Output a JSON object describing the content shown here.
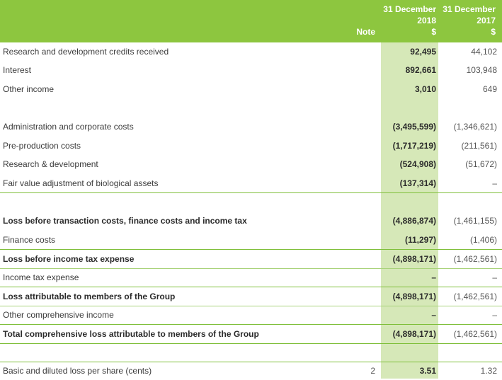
{
  "header": {
    "note_label": "Note",
    "col2018": {
      "line1": "31 December",
      "line2": "2018",
      "unit": "$"
    },
    "col2017": {
      "line1": "31 December",
      "line2": "2017",
      "unit": "$"
    }
  },
  "rows": [
    {
      "label": "Research and development credits received",
      "note": "",
      "v2018": "92,495",
      "v2017": "44,102"
    },
    {
      "label": "Interest",
      "note": "",
      "v2018": "892,661",
      "v2017": "103,948"
    },
    {
      "label": "Other income",
      "note": "",
      "v2018": "3,010",
      "v2017": "649"
    },
    {
      "label": "Administration and corporate costs",
      "note": "",
      "v2018": "(3,495,599)",
      "v2017": "(1,346,621)"
    },
    {
      "label": "Pre-production costs",
      "note": "",
      "v2018": "(1,717,219)",
      "v2017": "(211,561)"
    },
    {
      "label": "Research & development",
      "note": "",
      "v2018": "(524,908)",
      "v2017": "(51,672)"
    },
    {
      "label": "Fair value adjustment of biological assets",
      "note": "",
      "v2018": "(137,314)",
      "v2017": "–"
    },
    {
      "label": "Loss before transaction costs, finance costs and income tax",
      "note": "",
      "v2018": "(4,886,874)",
      "v2017": "(1,461,155)"
    },
    {
      "label": "Finance costs",
      "note": "",
      "v2018": "(11,297)",
      "v2017": "(1,406)"
    },
    {
      "label": "Loss before income tax expense",
      "note": "",
      "v2018": "(4,898,171)",
      "v2017": "(1,462,561)"
    },
    {
      "label": "Income tax expense",
      "note": "",
      "v2018": "–",
      "v2017": "–"
    },
    {
      "label": "Loss attributable to members of the Group",
      "note": "",
      "v2018": "(4,898,171)",
      "v2017": "(1,462,561)"
    },
    {
      "label": "Other comprehensive income",
      "note": "",
      "v2018": "–",
      "v2017": "–"
    },
    {
      "label": "Total comprehensive loss attributable to members of the Group",
      "note": "",
      "v2018": "(4,898,171)",
      "v2017": "(1,462,561)"
    },
    {
      "label": "Basic and diluted loss per share (cents)",
      "note": "2",
      "v2018": "3.51",
      "v2017": "1.32"
    }
  ]
}
